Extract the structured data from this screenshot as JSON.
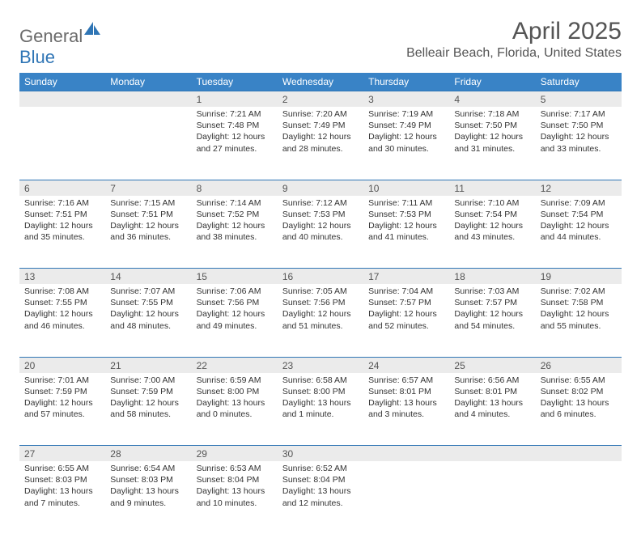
{
  "brand": {
    "general": "General",
    "blue": "Blue"
  },
  "title": "April 2025",
  "location": "Belleair Beach, Florida, United States",
  "day_headers": [
    "Sunday",
    "Monday",
    "Tuesday",
    "Wednesday",
    "Thursday",
    "Friday",
    "Saturday"
  ],
  "colors": {
    "header_bg": "#3983c6",
    "header_text": "#ffffff",
    "daynum_bg": "#ebebeb",
    "border": "#2f75b5",
    "title_text": "#555555",
    "body_text": "#333333",
    "logo_gray": "#6b6b6b",
    "logo_blue": "#2f75b5",
    "page_bg": "#ffffff"
  },
  "weeks": [
    [
      null,
      null,
      {
        "n": "1",
        "sr": "Sunrise: 7:21 AM",
        "ss": "Sunset: 7:48 PM",
        "dl1": "Daylight: 12 hours",
        "dl2": "and 27 minutes."
      },
      {
        "n": "2",
        "sr": "Sunrise: 7:20 AM",
        "ss": "Sunset: 7:49 PM",
        "dl1": "Daylight: 12 hours",
        "dl2": "and 28 minutes."
      },
      {
        "n": "3",
        "sr": "Sunrise: 7:19 AM",
        "ss": "Sunset: 7:49 PM",
        "dl1": "Daylight: 12 hours",
        "dl2": "and 30 minutes."
      },
      {
        "n": "4",
        "sr": "Sunrise: 7:18 AM",
        "ss": "Sunset: 7:50 PM",
        "dl1": "Daylight: 12 hours",
        "dl2": "and 31 minutes."
      },
      {
        "n": "5",
        "sr": "Sunrise: 7:17 AM",
        "ss": "Sunset: 7:50 PM",
        "dl1": "Daylight: 12 hours",
        "dl2": "and 33 minutes."
      }
    ],
    [
      {
        "n": "6",
        "sr": "Sunrise: 7:16 AM",
        "ss": "Sunset: 7:51 PM",
        "dl1": "Daylight: 12 hours",
        "dl2": "and 35 minutes."
      },
      {
        "n": "7",
        "sr": "Sunrise: 7:15 AM",
        "ss": "Sunset: 7:51 PM",
        "dl1": "Daylight: 12 hours",
        "dl2": "and 36 minutes."
      },
      {
        "n": "8",
        "sr": "Sunrise: 7:14 AM",
        "ss": "Sunset: 7:52 PM",
        "dl1": "Daylight: 12 hours",
        "dl2": "and 38 minutes."
      },
      {
        "n": "9",
        "sr": "Sunrise: 7:12 AM",
        "ss": "Sunset: 7:53 PM",
        "dl1": "Daylight: 12 hours",
        "dl2": "and 40 minutes."
      },
      {
        "n": "10",
        "sr": "Sunrise: 7:11 AM",
        "ss": "Sunset: 7:53 PM",
        "dl1": "Daylight: 12 hours",
        "dl2": "and 41 minutes."
      },
      {
        "n": "11",
        "sr": "Sunrise: 7:10 AM",
        "ss": "Sunset: 7:54 PM",
        "dl1": "Daylight: 12 hours",
        "dl2": "and 43 minutes."
      },
      {
        "n": "12",
        "sr": "Sunrise: 7:09 AM",
        "ss": "Sunset: 7:54 PM",
        "dl1": "Daylight: 12 hours",
        "dl2": "and 44 minutes."
      }
    ],
    [
      {
        "n": "13",
        "sr": "Sunrise: 7:08 AM",
        "ss": "Sunset: 7:55 PM",
        "dl1": "Daylight: 12 hours",
        "dl2": "and 46 minutes."
      },
      {
        "n": "14",
        "sr": "Sunrise: 7:07 AM",
        "ss": "Sunset: 7:55 PM",
        "dl1": "Daylight: 12 hours",
        "dl2": "and 48 minutes."
      },
      {
        "n": "15",
        "sr": "Sunrise: 7:06 AM",
        "ss": "Sunset: 7:56 PM",
        "dl1": "Daylight: 12 hours",
        "dl2": "and 49 minutes."
      },
      {
        "n": "16",
        "sr": "Sunrise: 7:05 AM",
        "ss": "Sunset: 7:56 PM",
        "dl1": "Daylight: 12 hours",
        "dl2": "and 51 minutes."
      },
      {
        "n": "17",
        "sr": "Sunrise: 7:04 AM",
        "ss": "Sunset: 7:57 PM",
        "dl1": "Daylight: 12 hours",
        "dl2": "and 52 minutes."
      },
      {
        "n": "18",
        "sr": "Sunrise: 7:03 AM",
        "ss": "Sunset: 7:57 PM",
        "dl1": "Daylight: 12 hours",
        "dl2": "and 54 minutes."
      },
      {
        "n": "19",
        "sr": "Sunrise: 7:02 AM",
        "ss": "Sunset: 7:58 PM",
        "dl1": "Daylight: 12 hours",
        "dl2": "and 55 minutes."
      }
    ],
    [
      {
        "n": "20",
        "sr": "Sunrise: 7:01 AM",
        "ss": "Sunset: 7:59 PM",
        "dl1": "Daylight: 12 hours",
        "dl2": "and 57 minutes."
      },
      {
        "n": "21",
        "sr": "Sunrise: 7:00 AM",
        "ss": "Sunset: 7:59 PM",
        "dl1": "Daylight: 12 hours",
        "dl2": "and 58 minutes."
      },
      {
        "n": "22",
        "sr": "Sunrise: 6:59 AM",
        "ss": "Sunset: 8:00 PM",
        "dl1": "Daylight: 13 hours",
        "dl2": "and 0 minutes."
      },
      {
        "n": "23",
        "sr": "Sunrise: 6:58 AM",
        "ss": "Sunset: 8:00 PM",
        "dl1": "Daylight: 13 hours",
        "dl2": "and 1 minute."
      },
      {
        "n": "24",
        "sr": "Sunrise: 6:57 AM",
        "ss": "Sunset: 8:01 PM",
        "dl1": "Daylight: 13 hours",
        "dl2": "and 3 minutes."
      },
      {
        "n": "25",
        "sr": "Sunrise: 6:56 AM",
        "ss": "Sunset: 8:01 PM",
        "dl1": "Daylight: 13 hours",
        "dl2": "and 4 minutes."
      },
      {
        "n": "26",
        "sr": "Sunrise: 6:55 AM",
        "ss": "Sunset: 8:02 PM",
        "dl1": "Daylight: 13 hours",
        "dl2": "and 6 minutes."
      }
    ],
    [
      {
        "n": "27",
        "sr": "Sunrise: 6:55 AM",
        "ss": "Sunset: 8:03 PM",
        "dl1": "Daylight: 13 hours",
        "dl2": "and 7 minutes."
      },
      {
        "n": "28",
        "sr": "Sunrise: 6:54 AM",
        "ss": "Sunset: 8:03 PM",
        "dl1": "Daylight: 13 hours",
        "dl2": "and 9 minutes."
      },
      {
        "n": "29",
        "sr": "Sunrise: 6:53 AM",
        "ss": "Sunset: 8:04 PM",
        "dl1": "Daylight: 13 hours",
        "dl2": "and 10 minutes."
      },
      {
        "n": "30",
        "sr": "Sunrise: 6:52 AM",
        "ss": "Sunset: 8:04 PM",
        "dl1": "Daylight: 13 hours",
        "dl2": "and 12 minutes."
      },
      null,
      null,
      null
    ]
  ]
}
